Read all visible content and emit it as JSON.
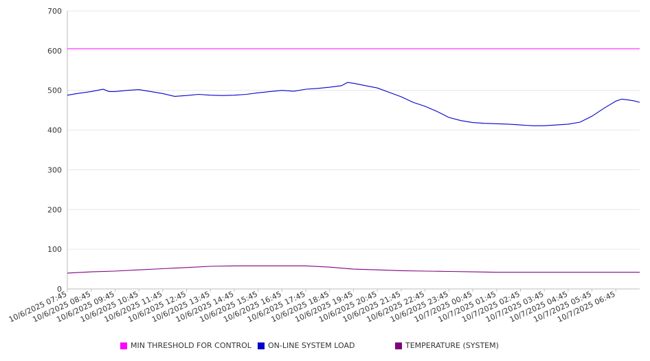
{
  "chart_data": {
    "type": "line",
    "ylim": [
      0,
      700
    ],
    "yticks": [
      0,
      100,
      200,
      300,
      400,
      500,
      600,
      700
    ],
    "grid": true,
    "legend_position": "bottom",
    "x_tick_labels": [
      "10/6/2025 07:45",
      "10/6/2025 08:45",
      "10/6/2025 09:45",
      "10/6/2025 10:45",
      "10/6/2025 11:45",
      "10/6/2025 12:45",
      "10/6/2025 13:45",
      "10/6/2025 14:45",
      "10/6/2025 15:45",
      "10/6/2025 16:45",
      "10/6/2025 17:45",
      "10/6/2025 18:45",
      "10/6/2025 19:45",
      "10/6/2025 20:45",
      "10/6/2025 21:45",
      "10/6/2025 22:45",
      "10/6/2025 23:45",
      "10/7/2025 00:45",
      "10/7/2025 01:45",
      "10/7/2025 02:45",
      "10/7/2025 03:45",
      "10/7/2025 04:45",
      "10/7/2025 05:45",
      "10/7/2025 06:45"
    ],
    "x_end": "10/7/2025 07:45",
    "series": [
      {
        "name": "MIN THRESHOLD FOR CONTROL",
        "color": "#ff00ff",
        "points": [
          [
            "10/6/2025 07:45",
            605
          ],
          [
            "10/7/2025 07:45",
            605
          ]
        ]
      },
      {
        "name": "ON-LINE SYSTEM LOAD",
        "color": "#0000cc",
        "points": [
          [
            "10/6/2025 07:45",
            488
          ],
          [
            "10/6/2025 08:15",
            493
          ],
          [
            "10/6/2025 08:45",
            497
          ],
          [
            "10/6/2025 09:15",
            503
          ],
          [
            "10/6/2025 09:30",
            497
          ],
          [
            "10/6/2025 09:45",
            497
          ],
          [
            "10/6/2025 10:15",
            500
          ],
          [
            "10/6/2025 10:45",
            502
          ],
          [
            "10/6/2025 11:15",
            497
          ],
          [
            "10/6/2025 11:45",
            492
          ],
          [
            "10/6/2025 12:15",
            485
          ],
          [
            "10/6/2025 12:45",
            487
          ],
          [
            "10/6/2025 13:15",
            490
          ],
          [
            "10/6/2025 13:45",
            488
          ],
          [
            "10/6/2025 14:15",
            487
          ],
          [
            "10/6/2025 14:45",
            488
          ],
          [
            "10/6/2025 15:15",
            490
          ],
          [
            "10/6/2025 15:45",
            494
          ],
          [
            "10/6/2025 16:15",
            497
          ],
          [
            "10/6/2025 16:45",
            500
          ],
          [
            "10/6/2025 17:15",
            498
          ],
          [
            "10/6/2025 17:45",
            503
          ],
          [
            "10/6/2025 18:15",
            505
          ],
          [
            "10/6/2025 18:45",
            508
          ],
          [
            "10/6/2025 19:15",
            512
          ],
          [
            "10/6/2025 19:30",
            520
          ],
          [
            "10/6/2025 19:45",
            518
          ],
          [
            "10/6/2025 20:15",
            512
          ],
          [
            "10/6/2025 20:45",
            506
          ],
          [
            "10/6/2025 21:15",
            495
          ],
          [
            "10/6/2025 21:45",
            484
          ],
          [
            "10/6/2025 22:15",
            470
          ],
          [
            "10/6/2025 22:45",
            460
          ],
          [
            "10/6/2025 23:15",
            447
          ],
          [
            "10/6/2025 23:45",
            432
          ],
          [
            "10/7/2025 00:15",
            424
          ],
          [
            "10/7/2025 00:45",
            419
          ],
          [
            "10/7/2025 01:15",
            417
          ],
          [
            "10/7/2025 01:45",
            416
          ],
          [
            "10/7/2025 02:15",
            415
          ],
          [
            "10/7/2025 02:45",
            413
          ],
          [
            "10/7/2025 03:15",
            411
          ],
          [
            "10/7/2025 03:45",
            411
          ],
          [
            "10/7/2025 04:15",
            413
          ],
          [
            "10/7/2025 04:45",
            415
          ],
          [
            "10/7/2025 05:15",
            420
          ],
          [
            "10/7/2025 05:45",
            435
          ],
          [
            "10/7/2025 06:15",
            455
          ],
          [
            "10/7/2025 06:45",
            473
          ],
          [
            "10/7/2025 07:00",
            478
          ],
          [
            "10/7/2025 07:15",
            476
          ],
          [
            "10/7/2025 07:30",
            474
          ],
          [
            "10/7/2025 07:45",
            470
          ]
        ]
      },
      {
        "name": "TEMPERATURE (SYSTEM)",
        "color": "#800080",
        "points": [
          [
            "10/6/2025 07:45",
            40
          ],
          [
            "10/6/2025 08:45",
            43
          ],
          [
            "10/6/2025 09:45",
            45
          ],
          [
            "10/6/2025 10:45",
            48
          ],
          [
            "10/6/2025 11:45",
            51
          ],
          [
            "10/6/2025 12:45",
            54
          ],
          [
            "10/6/2025 13:45",
            57
          ],
          [
            "10/6/2025 14:45",
            58
          ],
          [
            "10/6/2025 15:45",
            58
          ],
          [
            "10/6/2025 16:45",
            58
          ],
          [
            "10/6/2025 17:45",
            58
          ],
          [
            "10/6/2025 18:45",
            55
          ],
          [
            "10/6/2025 19:45",
            50
          ],
          [
            "10/6/2025 20:45",
            48
          ],
          [
            "10/6/2025 21:45",
            46
          ],
          [
            "10/6/2025 22:45",
            45
          ],
          [
            "10/6/2025 23:45",
            44
          ],
          [
            "10/7/2025 00:45",
            43
          ],
          [
            "10/7/2025 01:45",
            42
          ],
          [
            "10/7/2025 02:45",
            42
          ],
          [
            "10/7/2025 03:45",
            42
          ],
          [
            "10/7/2025 04:45",
            42
          ],
          [
            "10/7/2025 05:45",
            42
          ],
          [
            "10/7/2025 06:45",
            42
          ],
          [
            "10/7/2025 07:45",
            42
          ]
        ]
      }
    ]
  }
}
